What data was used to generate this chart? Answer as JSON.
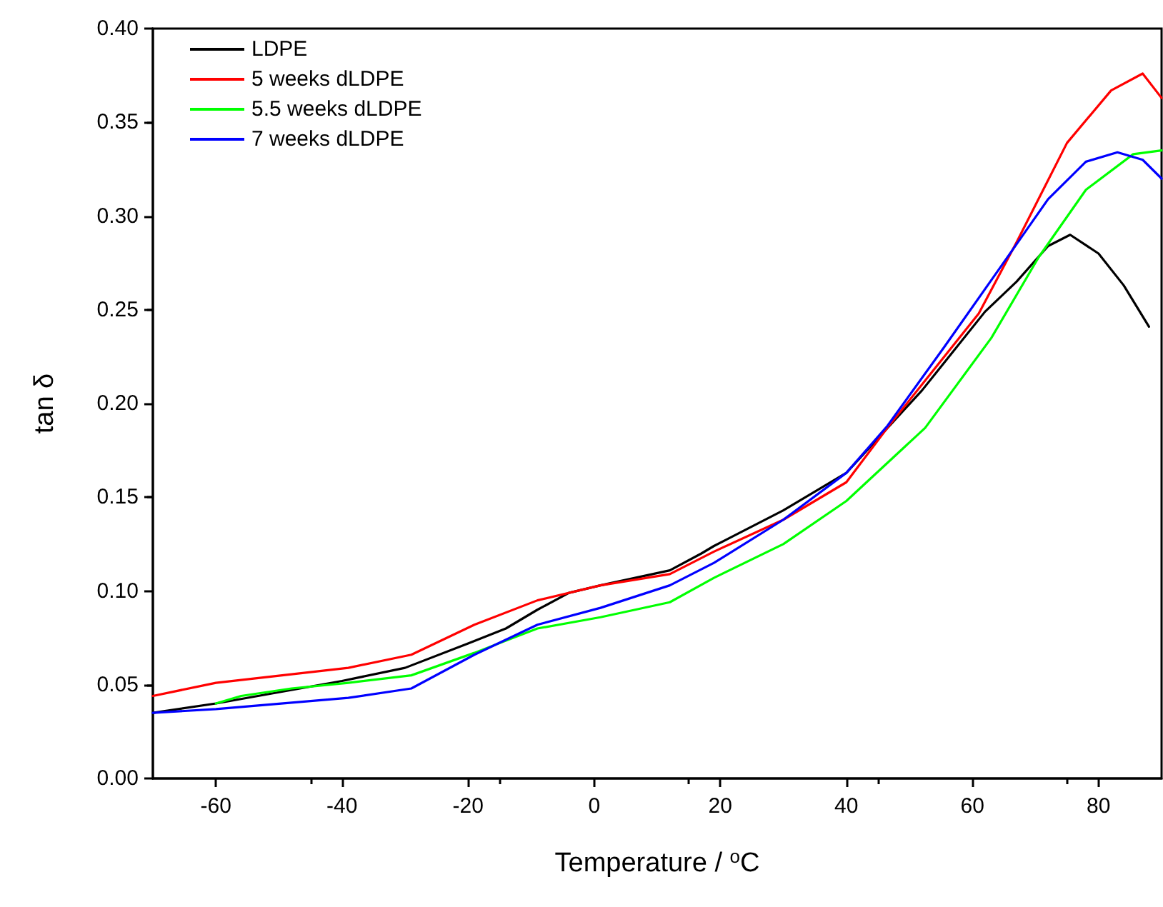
{
  "chart_data": {
    "type": "line",
    "xlabel": "Temperature / $^{o}$C",
    "ylabel": "tan δ",
    "xlim": [
      -70,
      90
    ],
    "xticks": [
      -60,
      -40,
      -20,
      0,
      20,
      40,
      60,
      80
    ],
    "ylim": [
      0,
      0.4
    ],
    "yticks": [
      {
        "value": 0,
        "label": "0.00"
      },
      0.05,
      {
        "value": 0.1,
        "label": "0.10"
      },
      0.15,
      {
        "value": 0.2,
        "label": "0.20"
      },
      0.25,
      {
        "value": 0.3,
        "label": "0.30"
      },
      0.35,
      {
        "value": 0.4,
        "label": "0.40"
      }
    ],
    "grid": false,
    "legend": "top left",
    "marker": "none",
    "line_style": "solid",
    "series": [
      {
        "name": "LDPE",
        "color": "#000000",
        "x": [
          -70,
          -60,
          -50,
          -40,
          -30,
          -20,
          -14,
          -9,
          -4,
          1,
          12,
          17,
          19,
          30,
          40,
          52,
          62,
          67,
          72,
          75.5,
          80,
          84,
          88
        ],
        "values": [
          0.035,
          0.04,
          0.046,
          0.052,
          0.059,
          0.072,
          0.08,
          0.09,
          0.099,
          0.103,
          0.111,
          0.12,
          0.124,
          0.143,
          0.163,
          0.207,
          0.249,
          0.265,
          0.284,
          0.29,
          0.28,
          0.263,
          0.241
        ]
      },
      {
        "name": "5 weeks dLDPE",
        "color": "#ff0000",
        "x": [
          -70,
          -60,
          -39,
          -29,
          -19,
          -9,
          1,
          12,
          19,
          30,
          40,
          46.5,
          61,
          67,
          75,
          82,
          87,
          90
        ],
        "values": [
          0.044,
          0.051,
          0.059,
          0.066,
          0.082,
          0.095,
          0.103,
          0.109,
          0.121,
          0.138,
          0.158,
          0.187,
          0.248,
          0.286,
          0.339,
          0.367,
          0.376,
          0.363
        ]
      },
      {
        "name": "5.5 weeks dLDPE",
        "color": "#00ff00",
        "x": [
          -60,
          -56,
          -48,
          -39,
          -29,
          -19,
          -9,
          1,
          12,
          19,
          30,
          40,
          52.5,
          63,
          70.5,
          78,
          85.5,
          90
        ],
        "values": [
          0.04,
          0.044,
          0.048,
          0.051,
          0.055,
          0.067,
          0.08,
          0.086,
          0.094,
          0.107,
          0.125,
          0.148,
          0.187,
          0.235,
          0.278,
          0.314,
          0.333,
          0.335
        ]
      },
      {
        "name": "7 weeks dLDPE",
        "color": "#0000ff",
        "x": [
          -70,
          -60,
          -39,
          -29,
          -19,
          -9,
          1,
          12,
          19,
          30,
          40,
          46.5,
          55.5,
          64.5,
          72,
          78,
          83,
          87,
          90
        ],
        "values": [
          0.035,
          0.037,
          0.043,
          0.048,
          0.066,
          0.082,
          0.091,
          0.103,
          0.115,
          0.138,
          0.163,
          0.188,
          0.23,
          0.273,
          0.309,
          0.329,
          0.334,
          0.33,
          0.32
        ]
      }
    ]
  }
}
